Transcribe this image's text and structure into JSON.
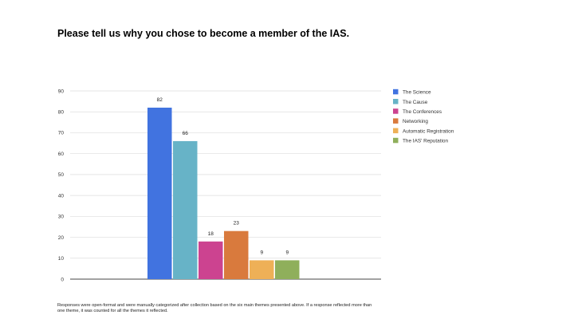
{
  "slide": {
    "title": "Please tell us why you chose to become a member of the IAS.",
    "footnote": "Responses were open-format and were manually categorized after collection based on the six main themes presented above. If a response reflected more than one theme, it was counted for all the themes it reflected."
  },
  "chart_data": {
    "type": "bar",
    "title": "",
    "xlabel": "",
    "ylabel": "",
    "ylim": [
      0,
      90
    ],
    "yticks": [
      0,
      10,
      20,
      30,
      40,
      50,
      60,
      70,
      80,
      90
    ],
    "grid": true,
    "legend_position": "right",
    "data_labels": true,
    "series": [
      {
        "name": "The Science",
        "values": [
          82
        ],
        "color": "#4173e0"
      },
      {
        "name": "The Cause",
        "values": [
          66
        ],
        "color": "#67b3c7"
      },
      {
        "name": "The Conferences",
        "values": [
          18
        ],
        "color": "#cc4390"
      },
      {
        "name": "Networking",
        "values": [
          23
        ],
        "color": "#d97a3d"
      },
      {
        "name": "Automatic Registration",
        "values": [
          9
        ],
        "color": "#eeb057"
      },
      {
        "name": "The IAS' Reputation",
        "values": [
          9
        ],
        "color": "#8faf5b"
      }
    ]
  }
}
